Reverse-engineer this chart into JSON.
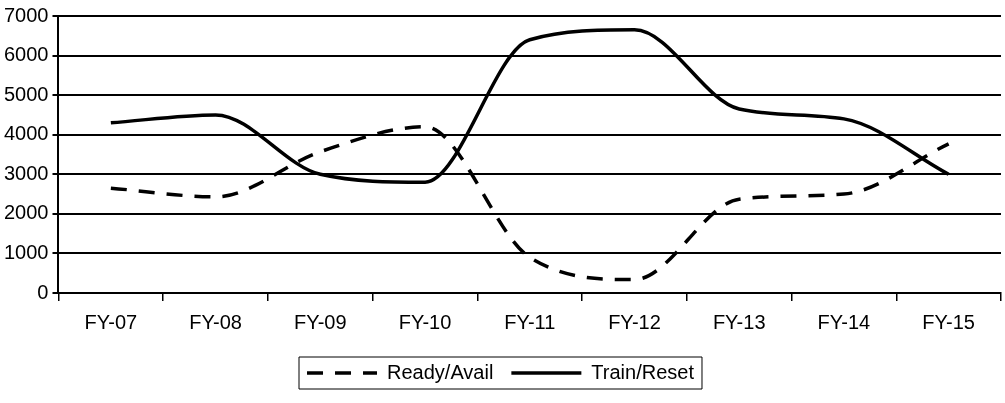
{
  "chart_data": {
    "type": "line",
    "categories": [
      "FY-07",
      "FY-08",
      "FY-09",
      "FY-10",
      "FY-11",
      "FY-12",
      "FY-13",
      "FY-14",
      "FY-15"
    ],
    "series": [
      {
        "name": "Ready/Avail",
        "color": "#000000",
        "line_style": "dashed",
        "values": [
          2650,
          2430,
          3570,
          4200,
          900,
          340,
          2370,
          2500,
          3770
        ]
      },
      {
        "name": "Train/Reset",
        "color": "#000000",
        "line_style": "solid",
        "values": [
          4300,
          4500,
          3000,
          2800,
          6400,
          6650,
          4650,
          4400,
          3000
        ]
      }
    ],
    "ylim": [
      0,
      7000
    ],
    "yticks": [
      0,
      1000,
      2000,
      3000,
      4000,
      5000,
      6000,
      7000
    ],
    "grid": "y",
    "legend": "bottom",
    "marker": "none"
  }
}
